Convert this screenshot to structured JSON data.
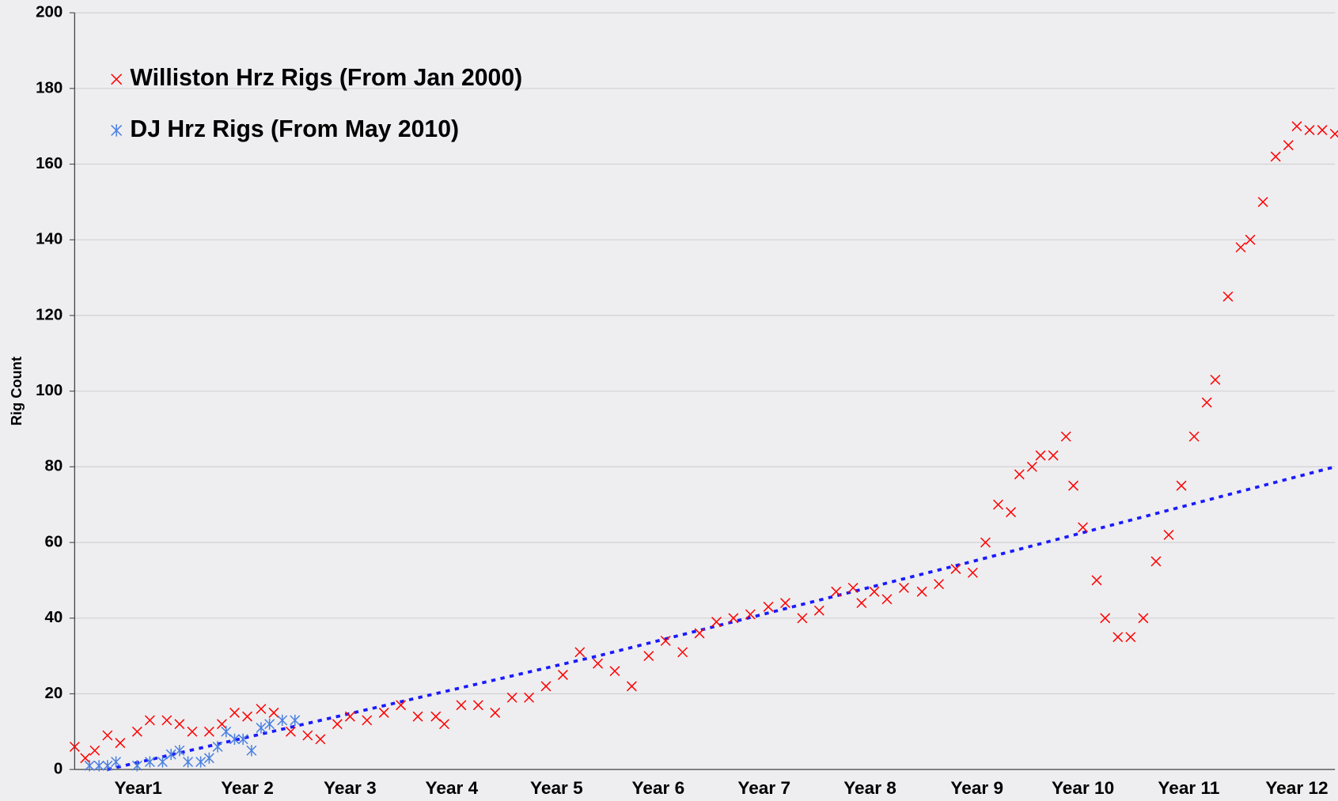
{
  "chart_data": {
    "type": "scatter",
    "y_label": "Rig Count",
    "xlim": [
      0,
      11.9
    ],
    "xticks": [
      {
        "value": 0.6,
        "label": "Year1"
      },
      {
        "value": 1.63,
        "label": "Year 2"
      },
      {
        "value": 2.6,
        "label": "Year 3"
      },
      {
        "value": 3.56,
        "label": "Year 4"
      },
      {
        "value": 4.55,
        "label": "Year 5"
      },
      {
        "value": 5.51,
        "label": "Year 6"
      },
      {
        "value": 6.51,
        "label": "Year 7"
      },
      {
        "value": 7.51,
        "label": "Year 8"
      },
      {
        "value": 8.52,
        "label": "Year 9"
      },
      {
        "value": 9.52,
        "label": "Year 10"
      },
      {
        "value": 10.52,
        "label": "Year 11"
      },
      {
        "value": 11.54,
        "label": "Year 12"
      }
    ],
    "ylim": [
      0,
      200
    ],
    "yticks": [
      0,
      20,
      40,
      60,
      80,
      100,
      120,
      140,
      160,
      180,
      200
    ],
    "grid": true,
    "legend": "upper left",
    "series": [
      {
        "name": "Williston Hrz Rigs (From Jan 2000)",
        "color": "#ff0000",
        "marker": "x",
        "x": [
          0,
          0.1,
          0.19,
          0.31,
          0.43,
          0.59,
          0.71,
          0.87,
          0.99,
          1.11,
          1.27,
          1.39,
          1.51,
          1.63,
          1.76,
          1.88,
          2.04,
          2.2,
          2.32,
          2.48,
          2.6,
          2.76,
          2.92,
          3.08,
          3.24,
          3.41,
          3.49,
          3.65,
          3.81,
          3.97,
          4.13,
          4.29,
          4.45,
          4.61,
          4.77,
          4.94,
          5.1,
          5.26,
          5.42,
          5.58,
          5.74,
          5.9,
          6.06,
          6.22,
          6.38,
          6.55,
          6.71,
          6.87,
          7.03,
          7.19,
          7.35,
          7.43,
          7.55,
          7.67,
          7.83,
          8.0,
          8.16,
          8.32,
          8.48,
          8.6,
          8.72,
          8.84,
          8.92,
          9.04,
          9.12,
          9.24,
          9.36,
          9.43,
          9.52,
          9.65,
          9.73,
          9.85,
          9.97,
          10.09,
          10.21,
          10.33,
          10.45,
          10.57,
          10.69,
          10.77,
          10.89,
          11.01,
          11.1,
          11.22,
          11.34,
          11.46,
          11.54,
          11.66,
          11.78,
          11.9
        ],
        "values": [
          6,
          3,
          5,
          9,
          7,
          10,
          13,
          13,
          12,
          10,
          10,
          12,
          15,
          14,
          16,
          15,
          10,
          9,
          8,
          12,
          14,
          13,
          15,
          17,
          14,
          14,
          12,
          17,
          17,
          15,
          19,
          19,
          22,
          25,
          31,
          28,
          26,
          22,
          30,
          34,
          31,
          36,
          39,
          40,
          41,
          43,
          44,
          40,
          42,
          47,
          48,
          44,
          47,
          45,
          48,
          47,
          49,
          53,
          52,
          60,
          70,
          68,
          78,
          80,
          83,
          83,
          88,
          75,
          64,
          50,
          40,
          35,
          35,
          40,
          55,
          62,
          75,
          88,
          97,
          103,
          125,
          138,
          140,
          150,
          162,
          165,
          170,
          169,
          169,
          168
        ]
      },
      {
        "name": "DJ Hrz Rigs (From May 2010)",
        "color": "#4a7fe0",
        "marker": "asterisk",
        "x": [
          0.14,
          0.23,
          0.31,
          0.39,
          0.59,
          0.71,
          0.83,
          0.91,
          0.99,
          1.07,
          1.19,
          1.27,
          1.35,
          1.43,
          1.51,
          1.59,
          1.67,
          1.76,
          1.84,
          1.96,
          2.08
        ],
        "values": [
          1,
          1,
          1,
          2,
          1,
          2,
          2,
          4,
          5,
          2,
          2,
          3,
          6,
          10,
          8,
          8,
          5,
          11,
          12,
          13,
          13
        ]
      }
    ],
    "trendline": {
      "color": "#1a1aff",
      "x": [
        0.31,
        2.48,
        4.94,
        8.48,
        11.9
      ],
      "values": [
        0,
        14,
        30,
        55,
        80
      ]
    }
  }
}
